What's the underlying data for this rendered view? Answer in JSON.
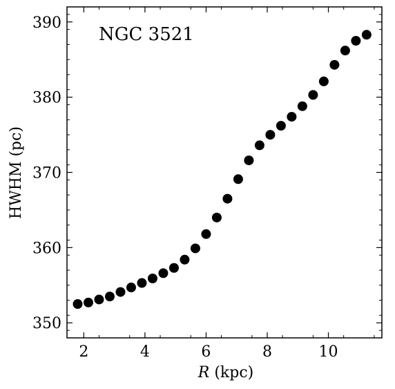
{
  "chart_data": {
    "type": "scatter",
    "annotation": "NGC 3521",
    "xlabel_symbol": "R",
    "xlabel_unit": " (kpc)",
    "ylabel": "HWHM (pc)",
    "xlim": [
      1.45,
      11.75
    ],
    "ylim": [
      348.0,
      392.0
    ],
    "xticks": [
      2,
      4,
      6,
      8,
      10
    ],
    "yticks": [
      350,
      360,
      370,
      380,
      390
    ],
    "grid": false,
    "marker_color": "#000000",
    "x": [
      1.8,
      2.15,
      2.5,
      2.85,
      3.2,
      3.55,
      3.9,
      4.25,
      4.6,
      4.95,
      5.3,
      5.65,
      6.0,
      6.35,
      6.7,
      7.05,
      7.4,
      7.75,
      8.1,
      8.45,
      8.8,
      9.15,
      9.5,
      9.85,
      10.2,
      10.55,
      10.9,
      11.25
    ],
    "y": [
      352.5,
      352.7,
      353.1,
      353.5,
      354.1,
      354.7,
      355.3,
      355.9,
      356.6,
      357.3,
      358.4,
      359.9,
      361.8,
      364.0,
      366.5,
      369.1,
      371.6,
      373.6,
      375.0,
      376.2,
      377.4,
      378.8,
      380.3,
      382.1,
      384.3,
      386.2,
      387.5,
      388.3
    ]
  }
}
